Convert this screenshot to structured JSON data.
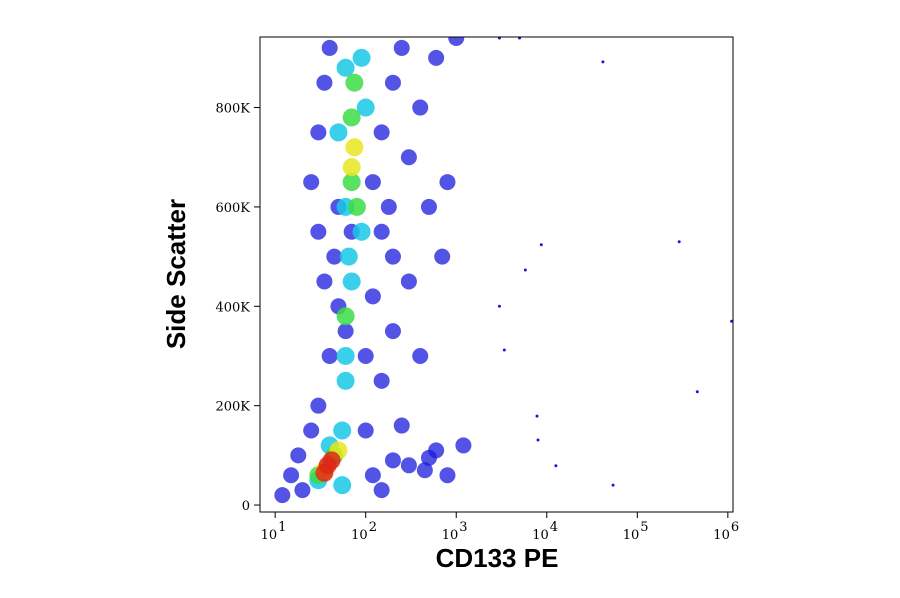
{
  "chart_data": {
    "type": "scatter",
    "xlabel": "CD133 PE",
    "ylabel": "Side Scatter",
    "xscale": "log",
    "xlim": [
      6.8,
      1140000
    ],
    "ylim": [
      -14000,
      942000
    ],
    "xticks": [
      {
        "value": 10,
        "label": "10",
        "exponent": "1"
      },
      {
        "value": 100,
        "label": "10",
        "exponent": "2"
      },
      {
        "value": 1000,
        "label": "10",
        "exponent": "3"
      },
      {
        "value": 10000,
        "label": "10",
        "exponent": "4"
      },
      {
        "value": 100000,
        "label": "10",
        "exponent": "5"
      },
      {
        "value": 1000000,
        "label": "10",
        "exponent": "6"
      }
    ],
    "yticks": [
      0,
      {
        "value": 200000,
        "label": "200K"
      },
      {
        "value": 400000,
        "label": "400K"
      },
      {
        "value": 600000,
        "label": "600K"
      },
      {
        "value": 800000,
        "label": "800K"
      }
    ],
    "series": [
      {
        "color": "#1a1adc",
        "x": [
          12,
          15,
          18,
          20,
          25,
          30,
          100,
          120,
          150,
          200,
          300,
          500,
          450,
          600,
          800,
          1200,
          250,
          40,
          50,
          60,
          100,
          120,
          150,
          200,
          300,
          35,
          45,
          70,
          150,
          200,
          400,
          25,
          30,
          35,
          40,
          50,
          120,
          150,
          200,
          250,
          300,
          400,
          500,
          600,
          180,
          30,
          700,
          800,
          1000,
          3000,
          5000,
          3000,
          5800,
          8700,
          41700,
          290000,
          460000,
          1100000,
          3400,
          7800,
          8000,
          12600,
          54000
        ],
        "values": [
          20000,
          60000,
          100000,
          30000,
          150000,
          200000,
          150000,
          60000,
          30000,
          90000,
          80000,
          95000,
          70000,
          110000,
          60000,
          120000,
          160000,
          300000,
          400000,
          350000,
          300000,
          420000,
          250000,
          350000,
          450000,
          450000,
          500000,
          550000,
          550000,
          500000,
          300000,
          650000,
          750000,
          850000,
          920000,
          600000,
          650000,
          750000,
          850000,
          920000,
          700000,
          800000,
          600000,
          900000,
          600000,
          550000,
          500000,
          650000,
          940000,
          940000,
          940000,
          400000,
          473000,
          524000,
          892000,
          530000,
          228000,
          370000,
          312000,
          179000,
          131000,
          79000,
          40000
        ]
      },
      {
        "color": "#19c8e6",
        "x": [
          40,
          55,
          30,
          60,
          70,
          60,
          65,
          60,
          90,
          50,
          100,
          60,
          90,
          55
        ],
        "values": [
          120000,
          150000,
          50000,
          300000,
          450000,
          250000,
          500000,
          600000,
          550000,
          750000,
          800000,
          880000,
          900000,
          40000
        ]
      },
      {
        "color": "#3cdc46",
        "x": [
          45,
          60,
          70,
          70,
          75,
          80,
          30
        ],
        "values": [
          100000,
          380000,
          650000,
          780000,
          850000,
          600000,
          60000
        ]
      },
      {
        "color": "#e6e61e",
        "x": [
          35,
          75,
          70,
          50
        ],
        "values": [
          70000,
          720000,
          680000,
          110000
        ]
      },
      {
        "color": "#dc2814",
        "x": [
          38,
          42,
          35
        ],
        "values": [
          80000,
          90000,
          65000
        ]
      }
    ]
  }
}
